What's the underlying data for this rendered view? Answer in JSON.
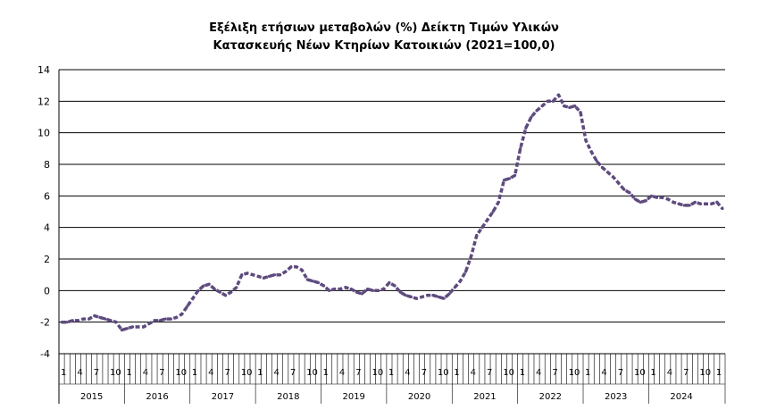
{
  "chart_data": {
    "type": "line",
    "title_line1": "Εξέλιξη ετήσιων μεταβολών (%) Δείκτη Τιμών Υλικών",
    "title_line2": "Κατασκευής Νέων Κτηρίων Κατοικιών (2021=100,0)",
    "ylim": [
      -4,
      14
    ],
    "yticks": [
      "-4",
      "-2",
      "0",
      "2",
      "4",
      "6",
      "8",
      "10",
      "12",
      "14"
    ],
    "month_tick_labels": [
      "1",
      "4",
      "7",
      "10"
    ],
    "years": [
      "2015",
      "2016",
      "2017",
      "2018",
      "2019",
      "2020",
      "2021",
      "2022",
      "2023",
      "2024"
    ],
    "grid": true,
    "series_color": "#5e4b7e",
    "values": [
      -2.0,
      -2.0,
      -1.9,
      -1.9,
      -1.8,
      -1.8,
      -1.6,
      -1.7,
      -1.8,
      -1.9,
      -2.0,
      -2.5,
      -2.4,
      -2.3,
      -2.3,
      -2.3,
      -2.1,
      -1.9,
      -1.9,
      -1.8,
      -1.8,
      -1.7,
      -1.5,
      -1.0,
      -0.5,
      0.0,
      0.3,
      0.4,
      0.1,
      -0.1,
      -0.3,
      -0.1,
      0.2,
      1.0,
      1.1,
      1.0,
      0.9,
      0.8,
      0.9,
      1.0,
      1.0,
      1.2,
      1.5,
      1.5,
      1.3,
      0.7,
      0.6,
      0.5,
      0.3,
      0.0,
      0.1,
      0.1,
      0.2,
      0.1,
      -0.1,
      -0.2,
      0.1,
      0.0,
      0.0,
      0.1,
      0.5,
      0.3,
      -0.1,
      -0.3,
      -0.4,
      -0.5,
      -0.4,
      -0.3,
      -0.3,
      -0.4,
      -0.5,
      -0.2,
      0.2,
      0.6,
      1.2,
      2.2,
      3.5,
      4.0,
      4.5,
      5.0,
      5.6,
      7.0,
      7.1,
      7.3,
      9.0,
      10.3,
      11.0,
      11.4,
      11.7,
      12.0,
      12.0,
      12.4,
      11.7,
      11.6,
      11.7,
      11.3,
      9.5,
      8.8,
      8.2,
      7.8,
      7.5,
      7.2,
      6.8,
      6.4,
      6.2,
      5.8,
      5.6,
      5.7,
      6.0,
      5.9,
      5.9,
      5.8,
      5.6,
      5.5,
      5.4,
      5.4,
      5.6,
      5.5,
      5.5,
      5.5,
      5.6,
      5.2
    ]
  }
}
